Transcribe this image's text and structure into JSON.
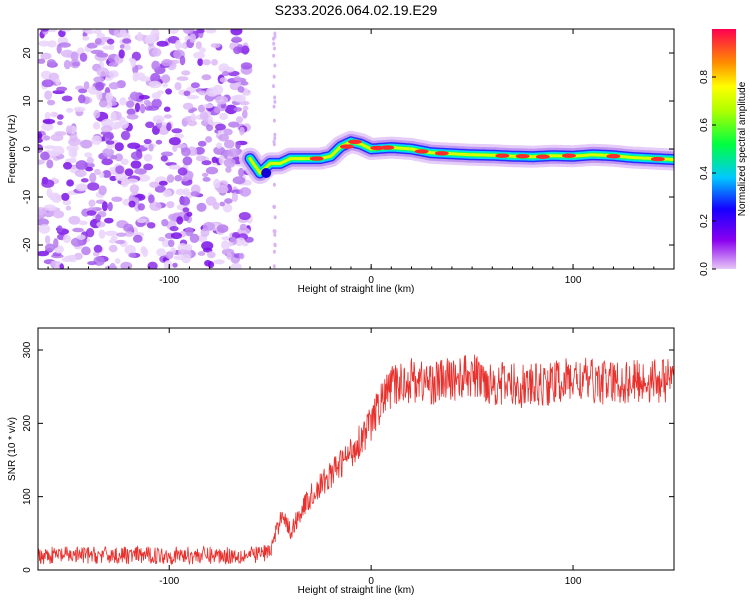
{
  "title": "S233.2026.064.02.19.E29",
  "chart_data": [
    {
      "type": "heatmap",
      "name": "spectrogram",
      "xlabel": "Height of straight line (km)",
      "ylabel": "Frequency (Hz)",
      "xlim": [
        -165,
        150
      ],
      "ylim": [
        -25,
        25
      ],
      "xticks": [
        -100,
        0,
        100
      ],
      "yticks": [
        -20,
        -10,
        0,
        10,
        20
      ],
      "noise_region_x": [
        -165,
        -60
      ],
      "signal_track": {
        "x": [
          -60,
          -55,
          -50,
          -45,
          -40,
          -35,
          -30,
          -25,
          -20,
          -15,
          -10,
          -5,
          0,
          10,
          20,
          30,
          40,
          50,
          60,
          70,
          80,
          90,
          100,
          110,
          120,
          130,
          140,
          150
        ],
        "y": [
          -2,
          -5,
          -3,
          -3,
          -2,
          -2,
          -2,
          -2,
          -1.5,
          0.5,
          1.5,
          1,
          0,
          0.3,
          0,
          -0.8,
          -1,
          -1.2,
          -1.3,
          -1.5,
          -1.6,
          -1.4,
          -1.5,
          -1.2,
          -1.4,
          -1.8,
          -2,
          -2.2
        ]
      },
      "colorbar": {
        "label": "Normalized spectral amplitude",
        "range": [
          0,
          1
        ],
        "ticks": [
          0.0,
          0.2,
          0.4,
          0.6,
          0.8
        ]
      }
    },
    {
      "type": "line",
      "name": "snr",
      "xlabel": "Height of straight line (km)",
      "ylabel": "SNR (10 * v/v)",
      "xlim": [
        -165,
        150
      ],
      "ylim": [
        0,
        330
      ],
      "xticks": [
        -100,
        0,
        100
      ],
      "yticks": [
        0,
        100,
        200,
        300
      ],
      "color": "#e8302c",
      "trend": {
        "x": [
          -165,
          -60,
          -50,
          -46,
          -44,
          -40,
          -35,
          -30,
          -20,
          -10,
          0,
          5,
          10,
          20,
          30,
          40,
          50,
          60,
          80,
          100,
          120,
          150
        ],
        "y": [
          20,
          20,
          25,
          60,
          80,
          50,
          80,
          100,
          130,
          160,
          200,
          230,
          250,
          260,
          255,
          260,
          265,
          255,
          250,
          260,
          255,
          260
        ]
      },
      "noise_amplitude": 12
    }
  ]
}
